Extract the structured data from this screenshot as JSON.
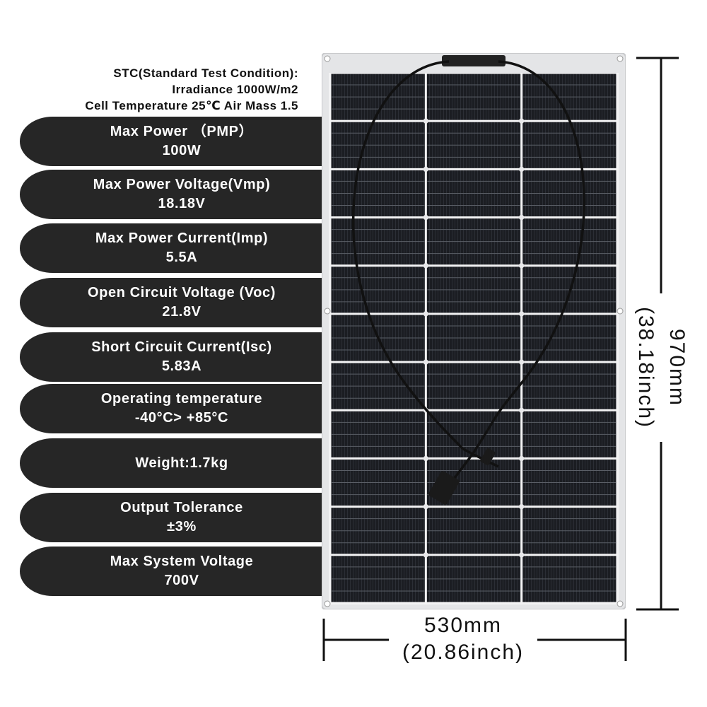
{
  "stc": {
    "line1": "STC(Standard Test Condition):",
    "line2": "Irradiance 1000W/m2",
    "line3": "Cell Temperature 25℃ Air Mass 1.5"
  },
  "specs": [
    {
      "label": "Max Power （PMP）",
      "value": "100W"
    },
    {
      "label": "Max Power Voltage(Vmp)",
      "value": "18.18V"
    },
    {
      "label": "Max Power Current(Imp)",
      "value": "5.5A"
    },
    {
      "label": "Open Circuit Voltage (Voc)",
      "value": "21.8V"
    },
    {
      "label": "Short Circuit Current(Isc)",
      "value": "5.83A"
    },
    {
      "label": "Operating temperature",
      "value": "-40°C> +85°C"
    },
    {
      "label": "Weight:1.7kg",
      "value": ""
    },
    {
      "label": "Output Tolerance",
      "value": "±3%"
    },
    {
      "label": "Max System Voltage",
      "value": "700V"
    }
  ],
  "dimensions": {
    "height_mm": "970mm",
    "height_inch": "(38.18inch)",
    "width_mm": "530mm",
    "width_inch": "(20.86inch)"
  },
  "colors": {
    "pill_bg": "#262626",
    "cell": "#1b1d22",
    "panel_border": "#d9dadc"
  }
}
